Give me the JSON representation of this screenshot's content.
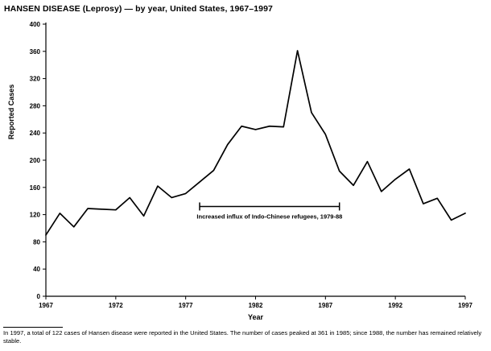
{
  "footnote": "In 1997, a total of 122 cases of Hansen disease were reported in the United States. The number of cases peaked at 361 in 1985; since 1988, the number has remained relatively stable.",
  "chart_data": {
    "type": "line",
    "title": "HANSEN DISEASE (Leprosy) — by year, United States, 1967–1997",
    "xlabel": "Year",
    "ylabel": "Reported Cases",
    "xlim": [
      1967,
      1997
    ],
    "ylim": [
      0,
      400
    ],
    "ytick_step": 40,
    "xticks": [
      1967,
      1972,
      1977,
      1982,
      1987,
      1992,
      1997
    ],
    "grid": false,
    "legend": "none",
    "line_color": "#000000",
    "x": [
      1967,
      1968,
      1969,
      1970,
      1971,
      1972,
      1973,
      1974,
      1975,
      1976,
      1977,
      1978,
      1979,
      1980,
      1981,
      1982,
      1983,
      1984,
      1985,
      1986,
      1987,
      1988,
      1989,
      1990,
      1991,
      1992,
      1993,
      1994,
      1995,
      1996,
      1997
    ],
    "values": [
      90,
      122,
      102,
      129,
      128,
      127,
      145,
      118,
      162,
      145,
      151,
      168,
      185,
      223,
      250,
      245,
      250,
      249,
      361,
      270,
      238,
      184,
      163,
      198,
      154,
      172,
      187,
      136,
      144,
      112,
      122
    ],
    "annotation": {
      "label": "Increased influx of Indo-Chinese refugees, 1979-88",
      "from_year": 1978,
      "to_year": 1988,
      "y_value": 132
    }
  }
}
